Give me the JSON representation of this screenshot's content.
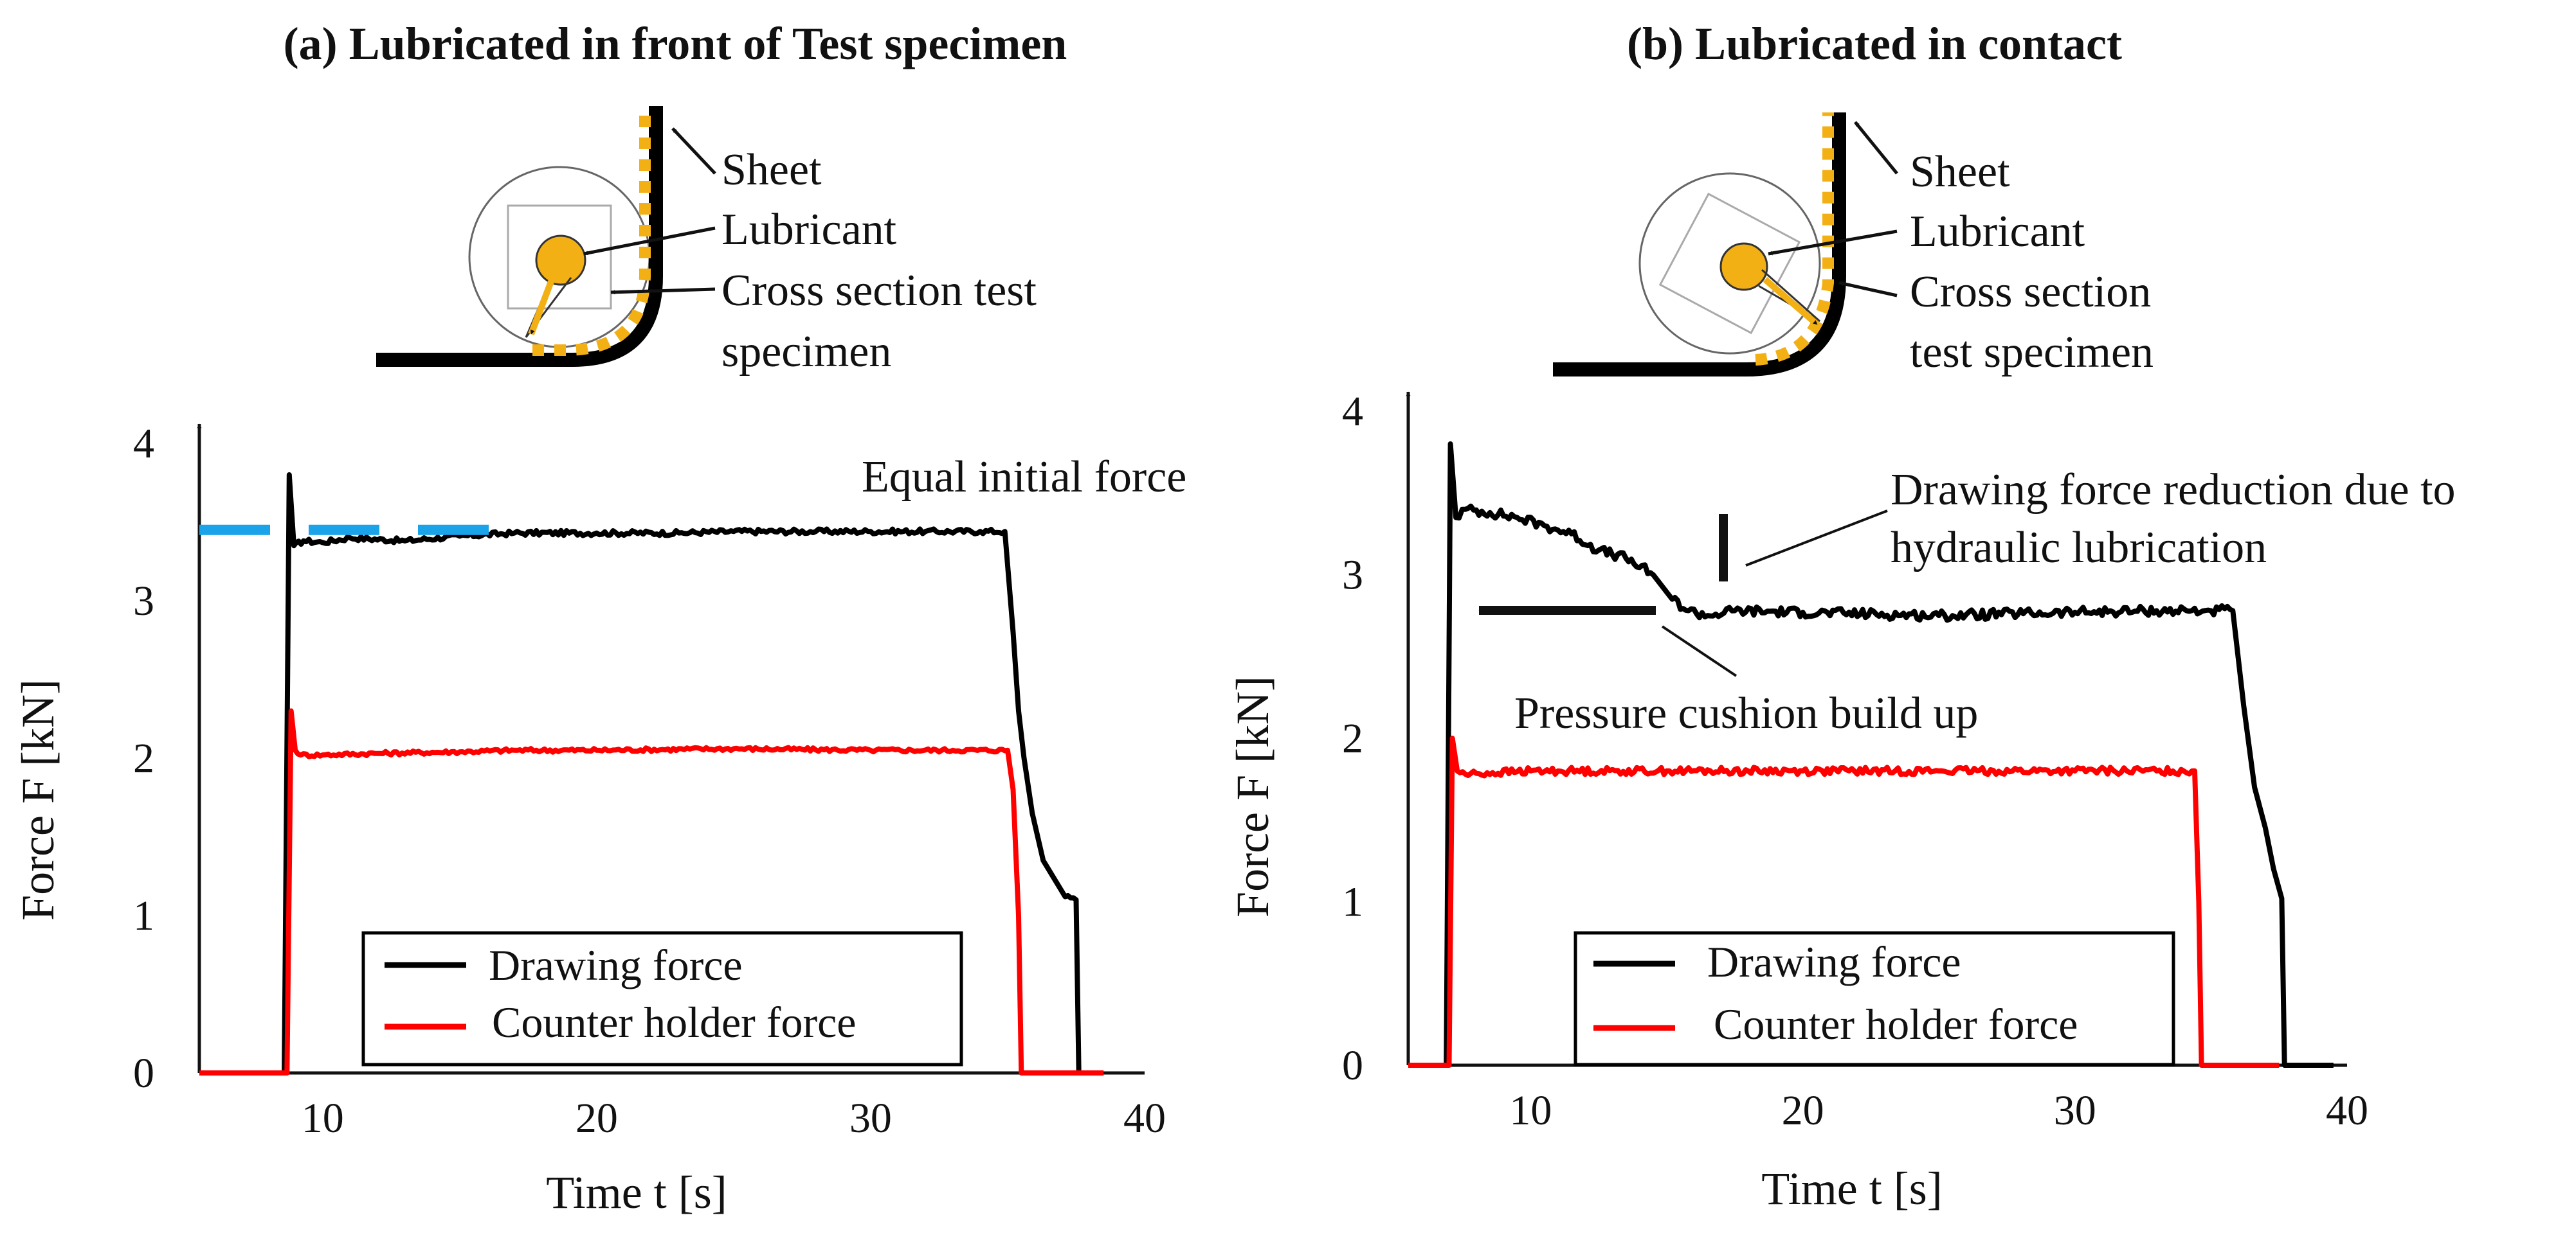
{
  "chart_data": [
    {
      "type": "line",
      "panel": "a",
      "title": "(a) Lubricated in front of Test specimen",
      "xlabel": "Time t [s]",
      "ylabel": "Force F [kN]",
      "xlim": [
        5.5,
        40
      ],
      "ylim": [
        0,
        4
      ],
      "xticks": [
        10,
        20,
        30,
        40
      ],
      "yticks": [
        0,
        1,
        2,
        3,
        4
      ],
      "diagram_labels": [
        "Sheet",
        "Lubricant",
        "Cross section test",
        "specimen"
      ],
      "annotations": [
        "Equal initial force"
      ],
      "legend": {
        "placement": "bottom-center",
        "entries": [
          "Drawing force",
          "Counter holder force"
        ]
      },
      "series": [
        {
          "name": "Drawing force",
          "color": "#000000",
          "x": [
            5.5,
            8.6,
            8.78,
            8.95,
            9.3,
            10,
            11,
            13,
            15,
            17,
            20,
            23,
            25,
            28,
            30,
            32,
            34,
            34.9,
            35.2,
            35.4,
            35.6,
            35.9,
            36.3,
            37.1,
            37.5,
            37.6,
            38.5
          ],
          "y": [
            0,
            0,
            3.8,
            3.35,
            3.38,
            3.37,
            3.4,
            3.38,
            3.41,
            3.43,
            3.43,
            3.43,
            3.44,
            3.44,
            3.44,
            3.44,
            3.44,
            3.44,
            2.8,
            2.3,
            2.0,
            1.65,
            1.35,
            1.12,
            1.1,
            0,
            0
          ]
        },
        {
          "name": "Counter holder force",
          "color": "#ff0000",
          "x": [
            5.5,
            8.7,
            8.85,
            9.0,
            9.2,
            10,
            12,
            15,
            17,
            20,
            25,
            30,
            33,
            35,
            35.2,
            35.4,
            35.5,
            38.5
          ],
          "y": [
            0,
            0,
            2.3,
            2.05,
            2.02,
            2.02,
            2.03,
            2.04,
            2.05,
            2.05,
            2.06,
            2.05,
            2.05,
            2.05,
            1.8,
            1.0,
            0,
            0
          ]
        },
        {
          "name": "Equal initial force",
          "color": "#1aa3e8",
          "style": "dashed",
          "x": [
            5.5,
            16.4
          ],
          "y": [
            3.45,
            3.45
          ]
        }
      ]
    },
    {
      "type": "line",
      "panel": "b",
      "title": "(b) Lubricated in contact",
      "xlabel": "Time t [s]",
      "ylabel": "Force F [kN]",
      "xlim": [
        5.5,
        40
      ],
      "ylim": [
        0,
        4
      ],
      "xticks": [
        10,
        20,
        30,
        40
      ],
      "yticks": [
        0,
        1,
        2,
        3,
        4
      ],
      "diagram_labels": [
        "Sheet",
        "Lubricant",
        "Cross section",
        "test specimen"
      ],
      "annotations": [
        "Drawing force reduction due to",
        "hydraulic lubrication",
        "Pressure cushion build up"
      ],
      "legend": {
        "placement": "bottom-center",
        "entries": [
          "Drawing force",
          "Counter holder force"
        ]
      },
      "series": [
        {
          "name": "Drawing force",
          "color": "#000000",
          "x": [
            5.5,
            6.9,
            7.05,
            7.25,
            7.6,
            8.5,
            9.5,
            10.5,
            11.5,
            12.5,
            13.5,
            14.5,
            15.2,
            15.8,
            16.5,
            17.5,
            20,
            25,
            30,
            33,
            35,
            35.8,
            36.2,
            36.6,
            37.0,
            37.3,
            37.6,
            37.7,
            39.5
          ],
          "y": [
            0,
            0,
            3.8,
            3.35,
            3.4,
            3.38,
            3.35,
            3.3,
            3.25,
            3.15,
            3.1,
            3.0,
            2.85,
            2.78,
            2.75,
            2.78,
            2.77,
            2.75,
            2.77,
            2.78,
            2.78,
            2.78,
            2.2,
            1.7,
            1.45,
            1.2,
            1.02,
            0,
            0
          ]
        },
        {
          "name": "Counter holder force",
          "color": "#ff0000",
          "x": [
            5.5,
            7.0,
            7.12,
            7.3,
            7.6,
            10,
            15,
            20,
            25,
            30,
            33,
            34.4,
            34.55,
            34.65,
            37.5
          ],
          "y": [
            0,
            0,
            2.0,
            1.8,
            1.78,
            1.8,
            1.8,
            1.8,
            1.8,
            1.8,
            1.8,
            1.8,
            1.0,
            0,
            0
          ]
        }
      ]
    }
  ]
}
